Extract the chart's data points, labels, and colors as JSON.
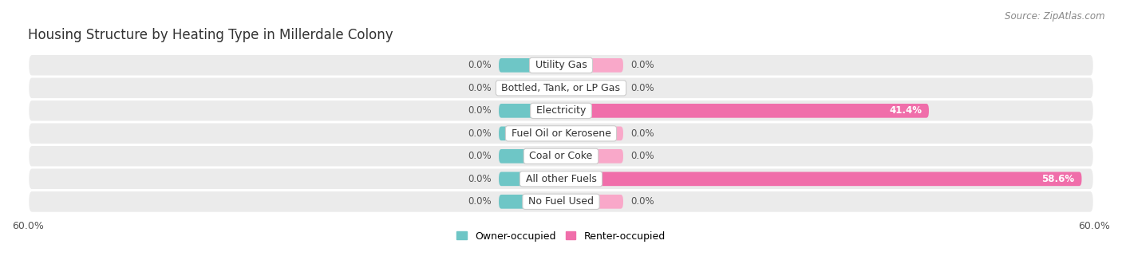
{
  "title": "Housing Structure by Heating Type in Millerdale Colony",
  "source": "Source: ZipAtlas.com",
  "categories": [
    "Utility Gas",
    "Bottled, Tank, or LP Gas",
    "Electricity",
    "Fuel Oil or Kerosene",
    "Coal or Coke",
    "All other Fuels",
    "No Fuel Used"
  ],
  "owner_values": [
    0.0,
    0.0,
    0.0,
    0.0,
    0.0,
    0.0,
    0.0
  ],
  "renter_values": [
    0.0,
    0.0,
    41.4,
    0.0,
    0.0,
    58.6,
    0.0
  ],
  "owner_color": "#6ec6c6",
  "renter_color_normal": "#f9a8c9",
  "renter_color_large": "#f06eaa",
  "row_bg_color": "#ebebeb",
  "row_bg_edge": "#d8d8d8",
  "xlim": 60.0,
  "title_fontsize": 12,
  "source_fontsize": 8.5,
  "label_fontsize": 9,
  "value_fontsize": 8.5,
  "tick_fontsize": 9,
  "bar_height": 0.62,
  "stub_owner": 7.0,
  "stub_renter": 7.0,
  "large_threshold": 10.0
}
